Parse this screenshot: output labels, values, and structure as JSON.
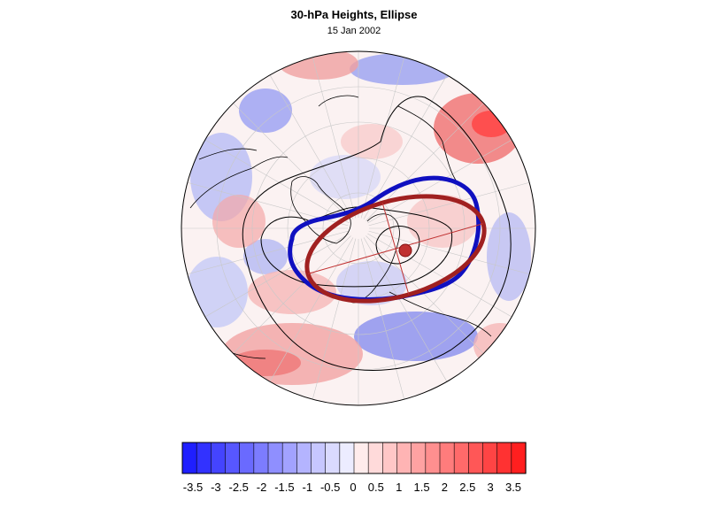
{
  "title": "30-hPa Heights, Ellipse",
  "date": "15 Jan 2002",
  "colorbar": {
    "labels": [
      "-3.5",
      "-3",
      "-2.5",
      "-2",
      "-1.5",
      "-1",
      "-0.5",
      "0",
      "0.5",
      "1",
      "1.5",
      "2",
      "2.5",
      "3",
      "3.5"
    ],
    "n_bins": 24,
    "color_negative": "#1f1fff",
    "color_neutral": "#ffffff",
    "color_positive": "#ff1f1f"
  },
  "map": {
    "projection": "polar-stereographic-north",
    "vortex_edge_color": "#1010c0",
    "fitted_ellipse_color": "#a02020",
    "centroid_color": "#c03030",
    "contour_color": "#000000",
    "coastline_color": "#000000"
  }
}
